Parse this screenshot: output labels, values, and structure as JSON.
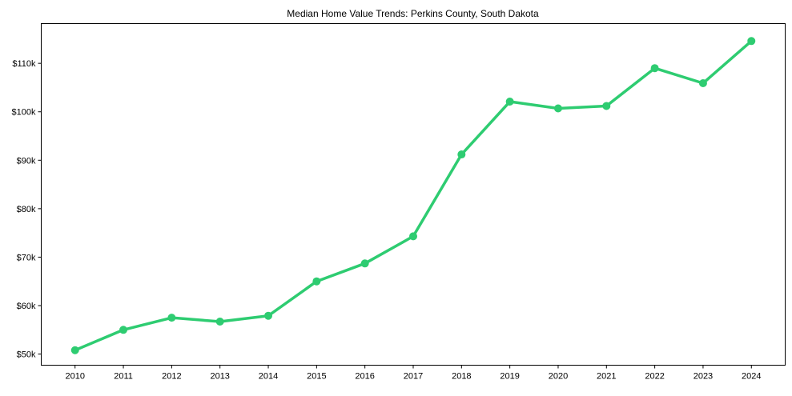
{
  "chart_data": {
    "type": "line",
    "title": "Median Home Value Trends: Perkins County, South Dakota",
    "xlabel": "",
    "ylabel": "",
    "x": [
      2010,
      2011,
      2012,
      2013,
      2014,
      2015,
      2016,
      2017,
      2018,
      2019,
      2020,
      2021,
      2022,
      2023,
      2024
    ],
    "series": [
      {
        "name": "Median Home Value",
        "color": "#2ecc71",
        "values": [
          50800,
          55000,
          57500,
          56700,
          57900,
          65000,
          68700,
          74300,
          91200,
          102100,
          100700,
          101200,
          109000,
          105900,
          114600
        ]
      }
    ],
    "xticks": [
      "2010",
      "2011",
      "2012",
      "2013",
      "2014",
      "2015",
      "2016",
      "2017",
      "2018",
      "2019",
      "2020",
      "2021",
      "2022",
      "2023",
      "2024"
    ],
    "yticks": [
      50000,
      60000,
      70000,
      80000,
      90000,
      100000,
      110000
    ],
    "ytick_labels": [
      "$50k",
      "$60k",
      "$70k",
      "$80k",
      "$90k",
      "$100k",
      "$110k"
    ],
    "xlim": [
      2009.3,
      2024.7
    ],
    "ylim": [
      47700,
      118200
    ],
    "grid": false,
    "legend": "none"
  }
}
